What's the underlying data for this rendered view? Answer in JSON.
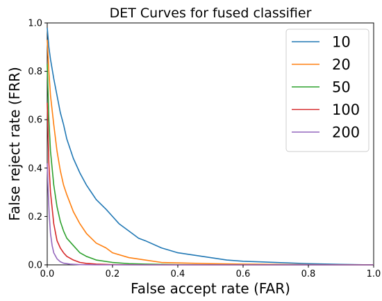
{
  "chart_data": {
    "type": "line",
    "title": "DET Curves for fused classifier",
    "xlabel": "False accept rate (FAR)",
    "ylabel": "False reject rate (FRR)",
    "xlim": [
      0,
      1
    ],
    "ylim": [
      0,
      1
    ],
    "xticks": [
      "0.0",
      "0.2",
      "0.4",
      "0.6",
      "0.8",
      "1.0"
    ],
    "yticks": [
      "0.0",
      "0.2",
      "0.4",
      "0.6",
      "0.8",
      "1.0"
    ],
    "grid": false,
    "legend_position": "top-right",
    "series": [
      {
        "name": "10",
        "color": "#1f77b4",
        "x": [
          0.0,
          0.005,
          0.01,
          0.02,
          0.03,
          0.04,
          0.05,
          0.06,
          0.08,
          0.1,
          0.12,
          0.13,
          0.15,
          0.18,
          0.2,
          0.22,
          0.25,
          0.28,
          0.3,
          0.35,
          0.4,
          0.45,
          0.5,
          0.55,
          0.6,
          0.7,
          0.8,
          0.9,
          1.0
        ],
        "y": [
          0.98,
          0.9,
          0.85,
          0.77,
          0.7,
          0.63,
          0.58,
          0.52,
          0.44,
          0.38,
          0.33,
          0.31,
          0.27,
          0.23,
          0.2,
          0.17,
          0.14,
          0.11,
          0.1,
          0.07,
          0.05,
          0.04,
          0.03,
          0.02,
          0.015,
          0.01,
          0.005,
          0.002,
          0.0
        ]
      },
      {
        "name": "20",
        "color": "#ff7f0e",
        "x": [
          0.0,
          0.005,
          0.01,
          0.02,
          0.03,
          0.04,
          0.05,
          0.06,
          0.08,
          0.1,
          0.12,
          0.15,
          0.18,
          0.2,
          0.25,
          0.3,
          0.35,
          0.4,
          0.5,
          0.6,
          0.8,
          1.0
        ],
        "y": [
          0.93,
          0.8,
          0.7,
          0.58,
          0.47,
          0.39,
          0.33,
          0.29,
          0.22,
          0.17,
          0.13,
          0.09,
          0.07,
          0.05,
          0.03,
          0.02,
          0.01,
          0.008,
          0.005,
          0.003,
          0.001,
          0.0
        ]
      },
      {
        "name": "50",
        "color": "#2ca02c",
        "x": [
          0.0,
          0.005,
          0.01,
          0.02,
          0.03,
          0.04,
          0.05,
          0.06,
          0.08,
          0.1,
          0.12,
          0.15,
          0.2,
          0.25,
          0.3,
          0.4,
          0.6,
          1.0
        ],
        "y": [
          0.83,
          0.6,
          0.47,
          0.33,
          0.24,
          0.18,
          0.14,
          0.11,
          0.08,
          0.05,
          0.035,
          0.02,
          0.01,
          0.005,
          0.003,
          0.001,
          0.0,
          0.0
        ]
      },
      {
        "name": "100",
        "color": "#d62728",
        "x": [
          0.0,
          0.005,
          0.01,
          0.02,
          0.03,
          0.04,
          0.05,
          0.06,
          0.08,
          0.1,
          0.12,
          0.15,
          0.2,
          0.3,
          0.5,
          1.0
        ],
        "y": [
          0.67,
          0.42,
          0.3,
          0.17,
          0.1,
          0.07,
          0.05,
          0.035,
          0.02,
          0.01,
          0.006,
          0.003,
          0.001,
          0.0,
          0.0,
          0.0
        ]
      },
      {
        "name": "200",
        "color": "#9467bd",
        "x": [
          0.0,
          0.003,
          0.006,
          0.01,
          0.015,
          0.02,
          0.03,
          0.04,
          0.05,
          0.07,
          0.1,
          0.15,
          0.2,
          0.4,
          1.0
        ],
        "y": [
          0.42,
          0.3,
          0.21,
          0.13,
          0.08,
          0.05,
          0.025,
          0.013,
          0.007,
          0.003,
          0.001,
          0.0,
          0.0,
          0.0,
          0.0
        ]
      }
    ]
  }
}
